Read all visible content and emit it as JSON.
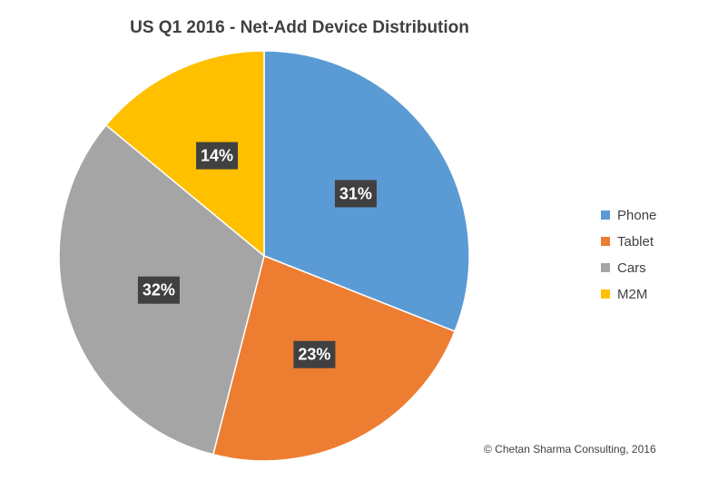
{
  "chart_data": {
    "type": "pie",
    "title": "US Q1 2016 - Net-Add Device Distribution",
    "categories": [
      "Phone",
      "Tablet",
      "Cars",
      "M2M"
    ],
    "values": [
      31,
      23,
      32,
      14
    ],
    "labels": [
      "31%",
      "23%",
      "32%",
      "14%"
    ],
    "colors": [
      "#5B9BD5",
      "#ED7D31",
      "#A5A5A5",
      "#FFC000"
    ],
    "legend_position": "right"
  },
  "footer": {
    "copyright": "© Chetan Sharma Consulting, 2016"
  }
}
